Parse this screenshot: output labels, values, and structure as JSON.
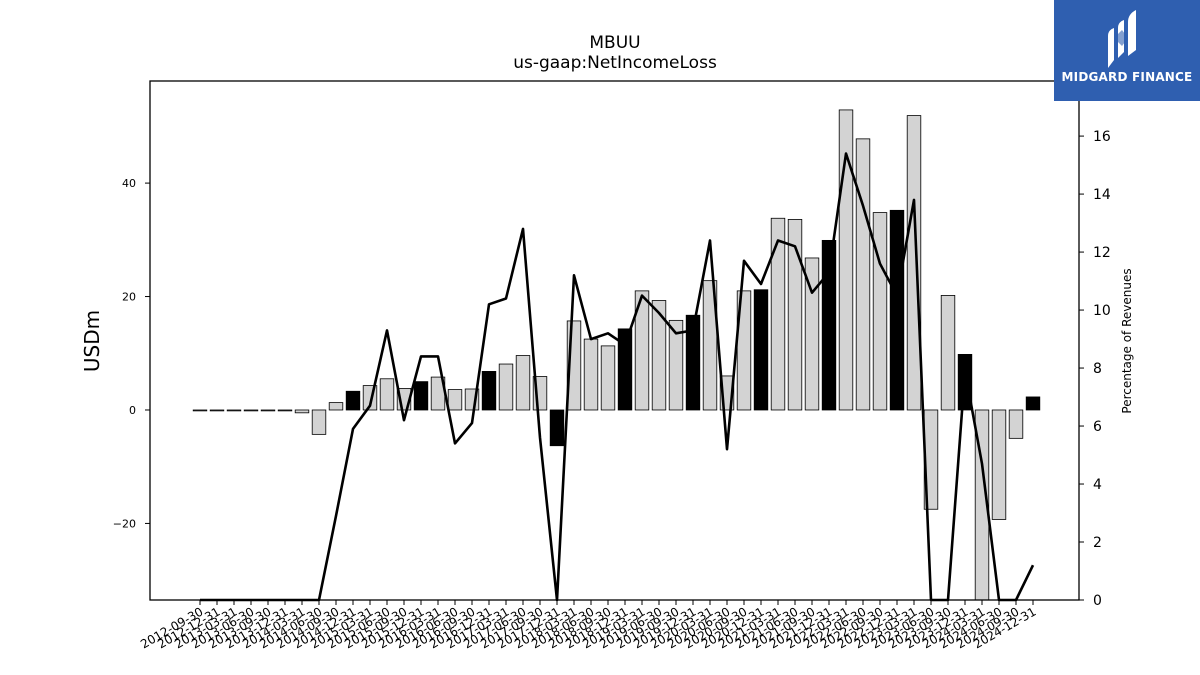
{
  "chart_data": {
    "type": "bar",
    "title": "MBUU",
    "subtitle": "us-gaap:NetIncomeLoss",
    "ylabel": "USDm",
    "y2label": "Percentage of Revenues",
    "ylim": [
      -33.5,
      58.0
    ],
    "y2lim": [
      0,
      17.9
    ],
    "yticks": [
      -20,
      0,
      20,
      40
    ],
    "y2ticks": [
      0,
      2,
      4,
      6,
      8,
      10,
      12,
      14,
      16
    ],
    "categories": [
      "2012-09-30",
      "2012-12-31",
      "2013-03-31",
      "2013-06-30",
      "2013-09-30",
      "2013-12-31",
      "2014-03-31",
      "2014-06-30",
      "2014-09-30",
      "2014-12-31",
      "2015-03-31",
      "2015-06-30",
      "2015-09-30",
      "2015-12-31",
      "2016-03-31",
      "2016-06-30",
      "2016-09-30",
      "2016-12-31",
      "2017-03-31",
      "2017-06-30",
      "2017-09-30",
      "2017-12-31",
      "2018-03-31",
      "2018-06-30",
      "2018-09-30",
      "2018-12-31",
      "2019-03-31",
      "2019-06-30",
      "2019-09-30",
      "2019-12-31",
      "2020-03-31",
      "2020-06-30",
      "2020-09-30",
      "2020-12-31",
      "2021-03-31",
      "2021-06-30",
      "2021-09-30",
      "2021-12-31",
      "2022-03-31",
      "2022-06-30",
      "2022-09-30",
      "2022-12-31",
      "2023-03-31",
      "2023-06-30",
      "2023-09-30",
      "2023-12-31",
      "2024-03-31",
      "2024-06-30",
      "2024-09-30",
      "2024-12-31"
    ],
    "series": [
      {
        "kind": "bar",
        "values": [
          0,
          0,
          0,
          0,
          0,
          0,
          -0.5,
          -4.3,
          1.3,
          3.3,
          4.3,
          5.5,
          3.8,
          5.0,
          5.8,
          3.6,
          3.7,
          6.8,
          8.1,
          9.6,
          5.9,
          -6.3,
          15.7,
          12.5,
          11.3,
          14.3,
          21.0,
          19.3,
          15.8,
          16.7,
          22.8,
          6.0,
          21.0,
          21.2,
          33.8,
          33.6,
          26.8,
          29.9,
          52.9,
          47.8,
          34.8,
          35.2,
          51.9,
          -17.5,
          20.2,
          9.8,
          -38.0,
          -19.3,
          -5.0,
          2.3
        ],
        "highlight": [
          false,
          false,
          false,
          false,
          false,
          false,
          false,
          false,
          false,
          true,
          false,
          false,
          false,
          true,
          false,
          false,
          false,
          true,
          false,
          false,
          false,
          true,
          false,
          false,
          false,
          true,
          false,
          false,
          false,
          true,
          false,
          false,
          false,
          true,
          false,
          false,
          false,
          true,
          false,
          false,
          false,
          true,
          false,
          false,
          false,
          true,
          false,
          false,
          false,
          true
        ]
      },
      {
        "kind": "line",
        "axis": "right",
        "values": [
          0,
          0,
          0,
          0,
          0,
          0,
          -2.0,
          -2.0,
          2.9,
          5.9,
          6.7,
          9.3,
          6.2,
          8.4,
          8.4,
          5.4,
          6.1,
          10.2,
          10.4,
          12.8,
          5.6,
          -2.0,
          11.2,
          9.0,
          9.2,
          8.8,
          10.5,
          9.9,
          9.2,
          9.3,
          12.4,
          5.2,
          11.7,
          10.9,
          12.4,
          12.2,
          10.6,
          11.3,
          15.4,
          13.6,
          11.6,
          10.5,
          13.8,
          -1.0,
          -1.0,
          7.9,
          4.7,
          -1.0,
          -1.0,
          1.2
        ]
      }
    ],
    "colors": {
      "bar": "#d3d3d3",
      "bar_highlight": "#000000",
      "line": "#000000",
      "axes": "#000000"
    },
    "grid": false
  },
  "logo": {
    "text": "MIDGARD FINANCE"
  }
}
